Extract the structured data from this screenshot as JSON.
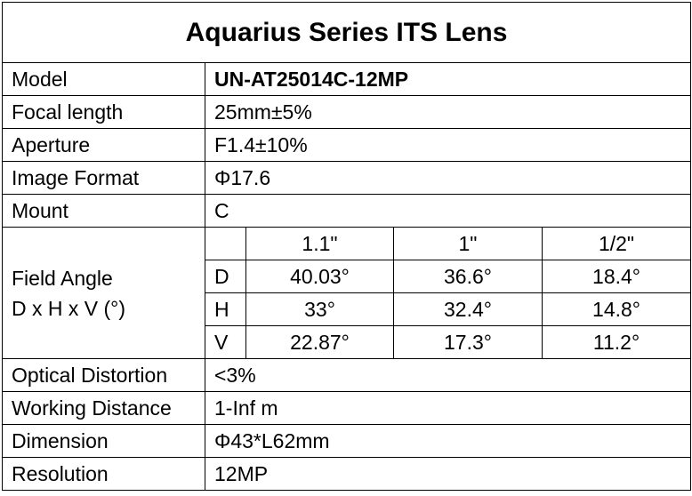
{
  "title": "Aquarius Series ITS Lens",
  "rows_top": [
    {
      "label": "Model",
      "value": "UN-AT25014C-12MP"
    },
    {
      "label": "Focal length",
      "value": "25mm±5%"
    },
    {
      "label": "Aperture",
      "value": "F1.4±10%"
    },
    {
      "label": "Image Format",
      "value": "Φ17.6"
    },
    {
      "label": "Mount",
      "value": "C"
    }
  ],
  "field_angle": {
    "label_line1": "Field Angle",
    "label_line2": "D x H x V (°)",
    "formats": [
      "1.1\"",
      "1\"",
      "1/2\""
    ],
    "rows": [
      {
        "axis": "D",
        "values": [
          "40.03°",
          "36.6°",
          "18.4°"
        ]
      },
      {
        "axis": "H",
        "values": [
          "33°",
          "32.4°",
          "14.8°"
        ]
      },
      {
        "axis": "V",
        "values": [
          "22.87°",
          "17.3°",
          "11.2°"
        ]
      }
    ]
  },
  "rows_bottom": [
    {
      "label": "Optical Distortion",
      "value": "<3%"
    },
    {
      "label": "Working Distance",
      "value": "1-Inf m"
    },
    {
      "label": "Dimension",
      "value": "Φ43*L62mm"
    },
    {
      "label": "Resolution",
      "value": "12MP"
    }
  ]
}
